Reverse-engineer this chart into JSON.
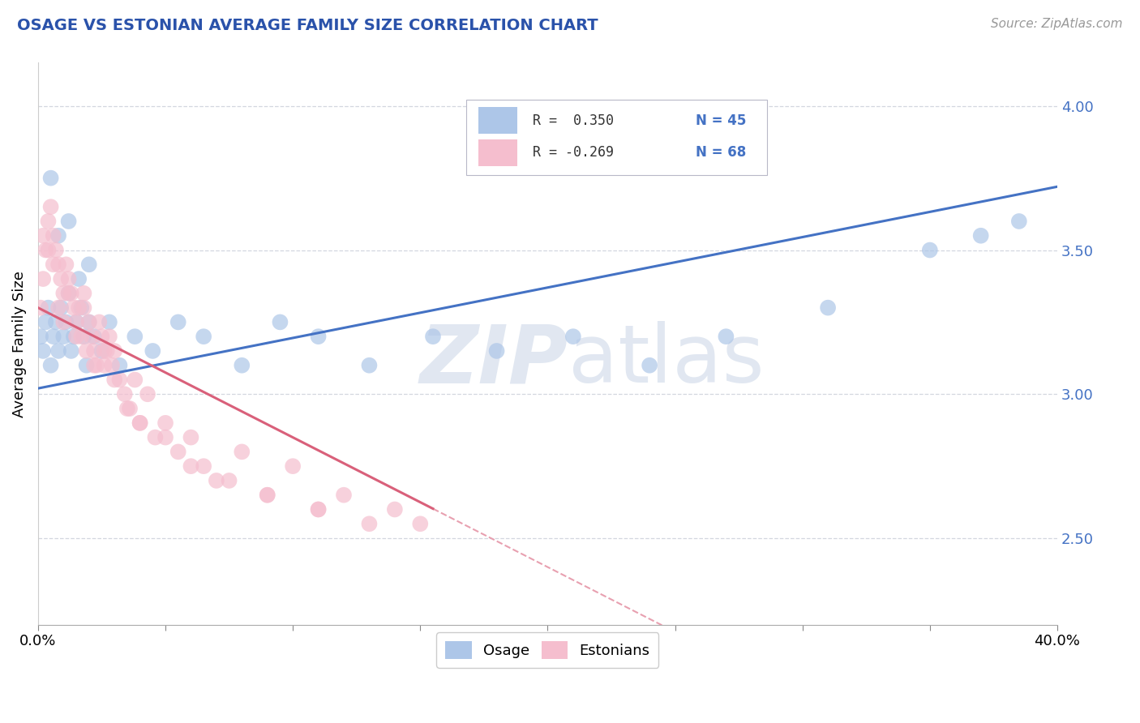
{
  "title": "OSAGE VS ESTONIAN AVERAGE FAMILY SIZE CORRELATION CHART",
  "source": "Source: ZipAtlas.com",
  "ylabel": "Average Family Size",
  "xlim": [
    0.0,
    0.4
  ],
  "ylim": [
    2.2,
    4.15
  ],
  "yticks": [
    2.5,
    3.0,
    3.5,
    4.0
  ],
  "xticks": [
    0.0,
    0.05,
    0.1,
    0.15,
    0.2,
    0.25,
    0.3,
    0.35,
    0.4
  ],
  "xticklabels_show": [
    "0.0%",
    "",
    "",
    "",
    "",
    "",
    "",
    "",
    "40.0%"
  ],
  "legend_r1": "R =  0.350",
  "legend_n1": "N = 45",
  "legend_r2": "R = -0.269",
  "legend_n2": "N = 68",
  "osage_color": "#adc6e8",
  "estonian_color": "#f5bece",
  "osage_line_color": "#4472c4",
  "estonian_line_color": "#d9607a",
  "estonian_dashed_color": "#e8a0b0",
  "watermark_color": "#cdd8e8",
  "background_color": "#ffffff",
  "grid_color": "#c8cdd8",
  "title_color": "#2a52aa",
  "ytick_color": "#4472c4",
  "osage_x": [
    0.001,
    0.002,
    0.003,
    0.004,
    0.005,
    0.006,
    0.007,
    0.008,
    0.009,
    0.01,
    0.011,
    0.012,
    0.013,
    0.014,
    0.015,
    0.016,
    0.017,
    0.018,
    0.019,
    0.02,
    0.022,
    0.025,
    0.028,
    0.032,
    0.038,
    0.045,
    0.055,
    0.065,
    0.08,
    0.095,
    0.11,
    0.13,
    0.155,
    0.18,
    0.21,
    0.24,
    0.27,
    0.31,
    0.35,
    0.37,
    0.385,
    0.005,
    0.008,
    0.012,
    0.02
  ],
  "osage_y": [
    3.2,
    3.15,
    3.25,
    3.3,
    3.1,
    3.2,
    3.25,
    3.15,
    3.3,
    3.2,
    3.25,
    3.35,
    3.15,
    3.2,
    3.25,
    3.4,
    3.3,
    3.2,
    3.1,
    3.25,
    3.2,
    3.15,
    3.25,
    3.1,
    3.2,
    3.15,
    3.25,
    3.2,
    3.1,
    3.25,
    3.2,
    3.1,
    3.2,
    3.15,
    3.2,
    3.1,
    3.2,
    3.3,
    3.5,
    3.55,
    3.6,
    3.75,
    3.55,
    3.6,
    3.45
  ],
  "estonian_x": [
    0.001,
    0.002,
    0.003,
    0.004,
    0.005,
    0.006,
    0.007,
    0.008,
    0.009,
    0.01,
    0.011,
    0.012,
    0.013,
    0.014,
    0.015,
    0.016,
    0.017,
    0.018,
    0.019,
    0.02,
    0.021,
    0.022,
    0.023,
    0.024,
    0.025,
    0.026,
    0.027,
    0.028,
    0.029,
    0.03,
    0.032,
    0.034,
    0.036,
    0.038,
    0.04,
    0.043,
    0.046,
    0.05,
    0.055,
    0.06,
    0.065,
    0.07,
    0.08,
    0.09,
    0.1,
    0.11,
    0.12,
    0.13,
    0.14,
    0.15,
    0.002,
    0.004,
    0.006,
    0.008,
    0.01,
    0.012,
    0.015,
    0.018,
    0.022,
    0.026,
    0.03,
    0.035,
    0.04,
    0.05,
    0.06,
    0.075,
    0.09,
    0.11
  ],
  "estonian_y": [
    3.3,
    3.4,
    3.5,
    3.6,
    3.65,
    3.55,
    3.5,
    3.45,
    3.4,
    3.35,
    3.45,
    3.4,
    3.35,
    3.3,
    3.25,
    3.3,
    3.2,
    3.35,
    3.15,
    3.25,
    3.2,
    3.15,
    3.1,
    3.25,
    3.2,
    3.1,
    3.15,
    3.2,
    3.1,
    3.15,
    3.05,
    3.0,
    2.95,
    3.05,
    2.9,
    3.0,
    2.85,
    2.9,
    2.8,
    2.85,
    2.75,
    2.7,
    2.8,
    2.65,
    2.75,
    2.6,
    2.65,
    2.55,
    2.6,
    2.55,
    3.55,
    3.5,
    3.45,
    3.3,
    3.25,
    3.35,
    3.2,
    3.3,
    3.1,
    3.15,
    3.05,
    2.95,
    2.9,
    2.85,
    2.75,
    2.7,
    2.65,
    2.6
  ]
}
